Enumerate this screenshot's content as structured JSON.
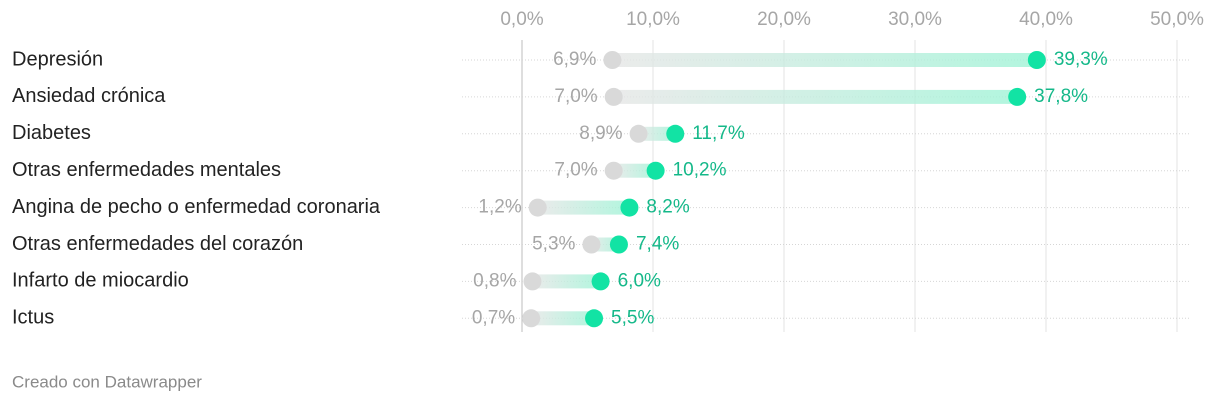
{
  "chart_data": {
    "type": "dumbbell",
    "categories": [
      "Depresión",
      "Ansiedad crónica",
      "Diabetes",
      "Otras enfermedades mentales",
      "Angina de pecho o enfermedad coronaria",
      "Otras enfermedades del corazón",
      "Infarto de miocardio",
      "Ictus"
    ],
    "series": [
      {
        "color": "#d9d9d9",
        "values": [
          6.9,
          7.0,
          8.9,
          7.0,
          1.2,
          5.3,
          0.8,
          0.7
        ],
        "value_labels": [
          "6,9%",
          "7,0%",
          "8,9%",
          "7,0%",
          "1,2%",
          "5,3%",
          "0,8%",
          "0,7%"
        ]
      },
      {
        "color": "#12e3a4",
        "values": [
          39.3,
          37.8,
          11.7,
          10.2,
          8.2,
          7.4,
          6.0,
          5.5
        ],
        "value_labels": [
          "39,3%",
          "37,8%",
          "11,7%",
          "10,2%",
          "8,2%",
          "7,4%",
          "6,0%",
          "5,5%"
        ]
      }
    ],
    "xlim": [
      0,
      50
    ],
    "xticks": [
      {
        "value": 0,
        "label": "0,0%"
      },
      {
        "value": 10,
        "label": "10,0%"
      },
      {
        "value": 20,
        "label": "20,0%"
      },
      {
        "value": 30,
        "label": "30,0%"
      },
      {
        "value": 40,
        "label": "40,0%"
      },
      {
        "value": 50,
        "label": "50,0%"
      }
    ],
    "grid": true,
    "footer": "Creado con Datawrapper"
  }
}
